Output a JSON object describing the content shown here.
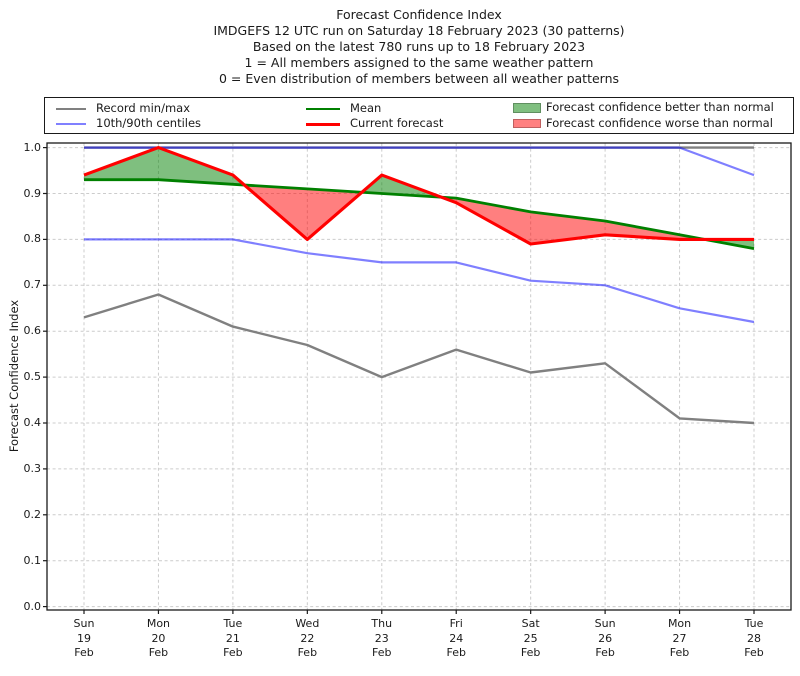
{
  "title": {
    "lines": [
      "Forecast Confidence Index",
      "IMDGEFS 12 UTC run on Saturday 18 February 2023 (30 patterns)",
      "Based on the latest 780 runs up to 18 February 2023",
      "1 = All members assigned to the same weather pattern",
      "0 = Even distribution of members between all weather patterns"
    ]
  },
  "legend": {
    "items": [
      {
        "label": "Record min/max",
        "swatch": "line",
        "color": "#808080"
      },
      {
        "label": "10th/90th centiles",
        "swatch": "line",
        "color": "#8080ff"
      },
      {
        "label": "Mean",
        "swatch": "line",
        "color": "#008000"
      },
      {
        "label": "Current forecast",
        "swatch": "line",
        "color": "#ff0000"
      },
      {
        "label": "Forecast confidence better than normal",
        "swatch": "patch",
        "color": "#80bf80"
      },
      {
        "label": "Forecast confidence worse than normal",
        "swatch": "patch",
        "color": "#ff8080"
      }
    ]
  },
  "chart_data": {
    "type": "line",
    "title": "Forecast Confidence Index",
    "xlabel": "",
    "ylabel": "Forecast Confidence Index",
    "ylim": [
      0.0,
      1.0
    ],
    "ytick_step": 0.1,
    "grid": true,
    "legend_position": "top",
    "categories": [
      [
        "Sun",
        "19",
        "Feb"
      ],
      [
        "Mon",
        "20",
        "Feb"
      ],
      [
        "Tue",
        "21",
        "Feb"
      ],
      [
        "Wed",
        "22",
        "Feb"
      ],
      [
        "Thu",
        "23",
        "Feb"
      ],
      [
        "Fri",
        "24",
        "Feb"
      ],
      [
        "Sat",
        "25",
        "Feb"
      ],
      [
        "Sun",
        "26",
        "Feb"
      ],
      [
        "Mon",
        "27",
        "Feb"
      ],
      [
        "Tue",
        "28",
        "Feb"
      ]
    ],
    "series": [
      {
        "name": "Record max",
        "color": "#808080",
        "style": "solid",
        "values": [
          1.0,
          1.0,
          1.0,
          1.0,
          1.0,
          1.0,
          1.0,
          1.0,
          1.0,
          1.0
        ]
      },
      {
        "name": "Record min",
        "color": "#808080",
        "style": "solid",
        "values": [
          0.63,
          0.68,
          0.61,
          0.57,
          0.5,
          0.56,
          0.51,
          0.53,
          0.41,
          0.4
        ]
      },
      {
        "name": "90th centile",
        "color": "#8080ff",
        "style": "solid",
        "values": [
          1.0,
          1.0,
          1.0,
          1.0,
          1.0,
          1.0,
          1.0,
          1.0,
          1.0,
          0.94
        ]
      },
      {
        "name": "10th centile",
        "color": "#8080ff",
        "style": "solid",
        "values": [
          0.8,
          0.8,
          0.8,
          0.77,
          0.75,
          0.75,
          0.71,
          0.7,
          0.65,
          0.62
        ]
      },
      {
        "name": "Mean",
        "color": "#008000",
        "style": "solid",
        "values": [
          0.93,
          0.93,
          0.92,
          0.91,
          0.9,
          0.89,
          0.86,
          0.84,
          0.81,
          0.78
        ]
      },
      {
        "name": "Current forecast",
        "color": "#ff0000",
        "style": "solid",
        "values": [
          0.94,
          1.0,
          0.94,
          0.8,
          0.94,
          0.88,
          0.79,
          0.81,
          0.8,
          0.8
        ]
      }
    ],
    "fills": [
      {
        "name": "Forecast confidence better than normal",
        "between": [
          "Current forecast",
          "Mean"
        ],
        "when": "current_above_mean",
        "color": "#008000",
        "alpha": 0.5
      },
      {
        "name": "Forecast confidence worse than normal",
        "between": [
          "Current forecast",
          "Mean"
        ],
        "when": "current_below_mean",
        "color": "#ff0000",
        "alpha": 0.5
      }
    ]
  }
}
